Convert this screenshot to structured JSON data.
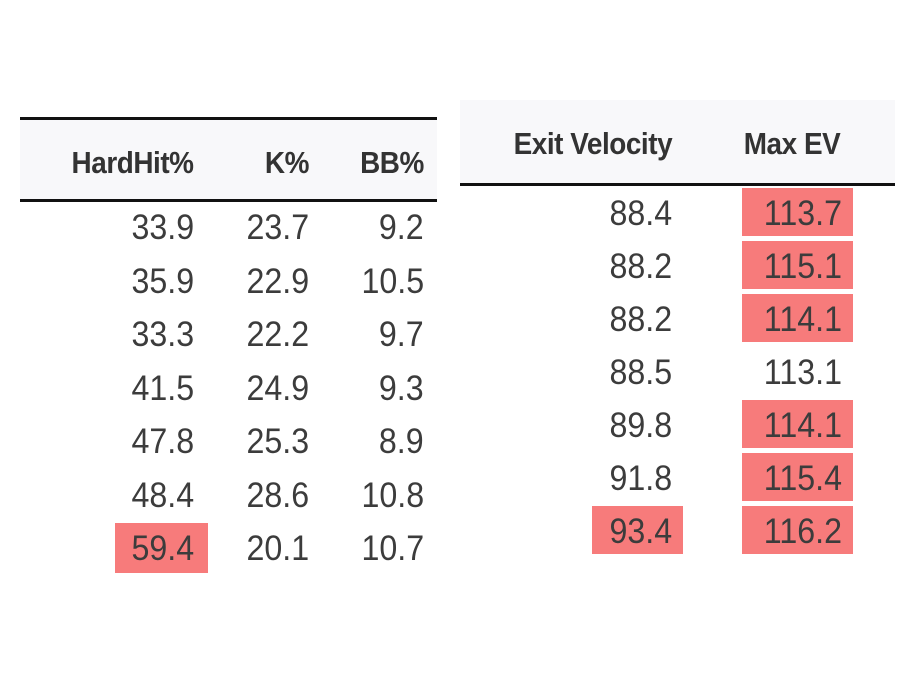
{
  "highlight_color": "#f77b7b",
  "left_table": {
    "headers": [
      "HardHit%",
      "K%",
      "BB%"
    ],
    "rows": [
      {
        "cells": [
          "33.9",
          "23.7",
          "9.2"
        ],
        "highlight": [
          false,
          false,
          false
        ]
      },
      {
        "cells": [
          "35.9",
          "22.9",
          "10.5"
        ],
        "highlight": [
          false,
          false,
          false
        ]
      },
      {
        "cells": [
          "33.3",
          "22.2",
          "9.7"
        ],
        "highlight": [
          false,
          false,
          false
        ]
      },
      {
        "cells": [
          "41.5",
          "24.9",
          "9.3"
        ],
        "highlight": [
          false,
          false,
          false
        ]
      },
      {
        "cells": [
          "47.8",
          "25.3",
          "8.9"
        ],
        "highlight": [
          false,
          false,
          false
        ]
      },
      {
        "cells": [
          "48.4",
          "28.6",
          "10.8"
        ],
        "highlight": [
          false,
          false,
          false
        ]
      },
      {
        "cells": [
          "59.4",
          "20.1",
          "10.7"
        ],
        "highlight": [
          true,
          false,
          false
        ]
      }
    ]
  },
  "right_table": {
    "headers": [
      "Exit Velocity",
      "Max EV"
    ],
    "rows": [
      {
        "cells": [
          "88.4",
          "113.7"
        ],
        "highlight": [
          false,
          true
        ]
      },
      {
        "cells": [
          "88.2",
          "115.1"
        ],
        "highlight": [
          false,
          true
        ]
      },
      {
        "cells": [
          "88.2",
          "114.1"
        ],
        "highlight": [
          false,
          true
        ]
      },
      {
        "cells": [
          "88.5",
          "113.1"
        ],
        "highlight": [
          false,
          false
        ]
      },
      {
        "cells": [
          "89.8",
          "114.1"
        ],
        "highlight": [
          false,
          true
        ]
      },
      {
        "cells": [
          "91.8",
          "115.4"
        ],
        "highlight": [
          false,
          true
        ]
      },
      {
        "cells": [
          "93.4",
          "116.2"
        ],
        "highlight": [
          true,
          true
        ]
      }
    ]
  }
}
